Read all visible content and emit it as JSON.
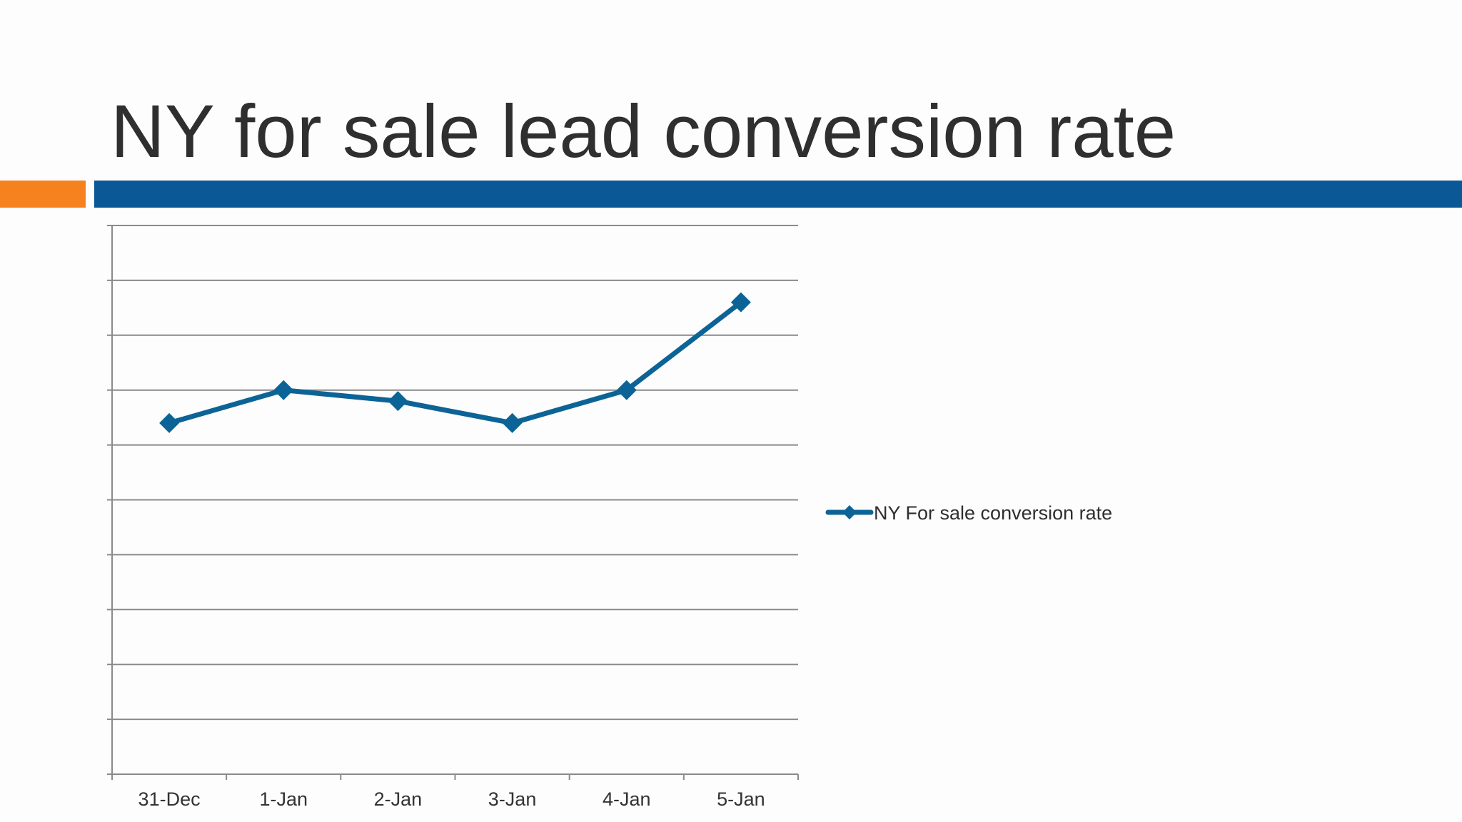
{
  "slide": {
    "title": "NY for sale lead conversion rate",
    "colors": {
      "accent_orange": "#f5821f",
      "accent_blue": "#0a5896",
      "series": "#0c6496",
      "gridline": "#8a8a8a"
    }
  },
  "chart_data": {
    "type": "line",
    "categories": [
      "31-Dec",
      "1-Jan",
      "2-Jan",
      "3-Jan",
      "4-Jan",
      "5-Jan"
    ],
    "series": [
      {
        "name": "NY For sale conversion rate",
        "values": [
          6.4,
          7.0,
          6.8,
          6.4,
          7.0,
          8.6
        ],
        "marker": "diamond"
      }
    ],
    "ylim": [
      0,
      10
    ],
    "y_gridline_step": 1,
    "y_tick_labels_shown": false,
    "grid": true,
    "legend_position": "right"
  }
}
